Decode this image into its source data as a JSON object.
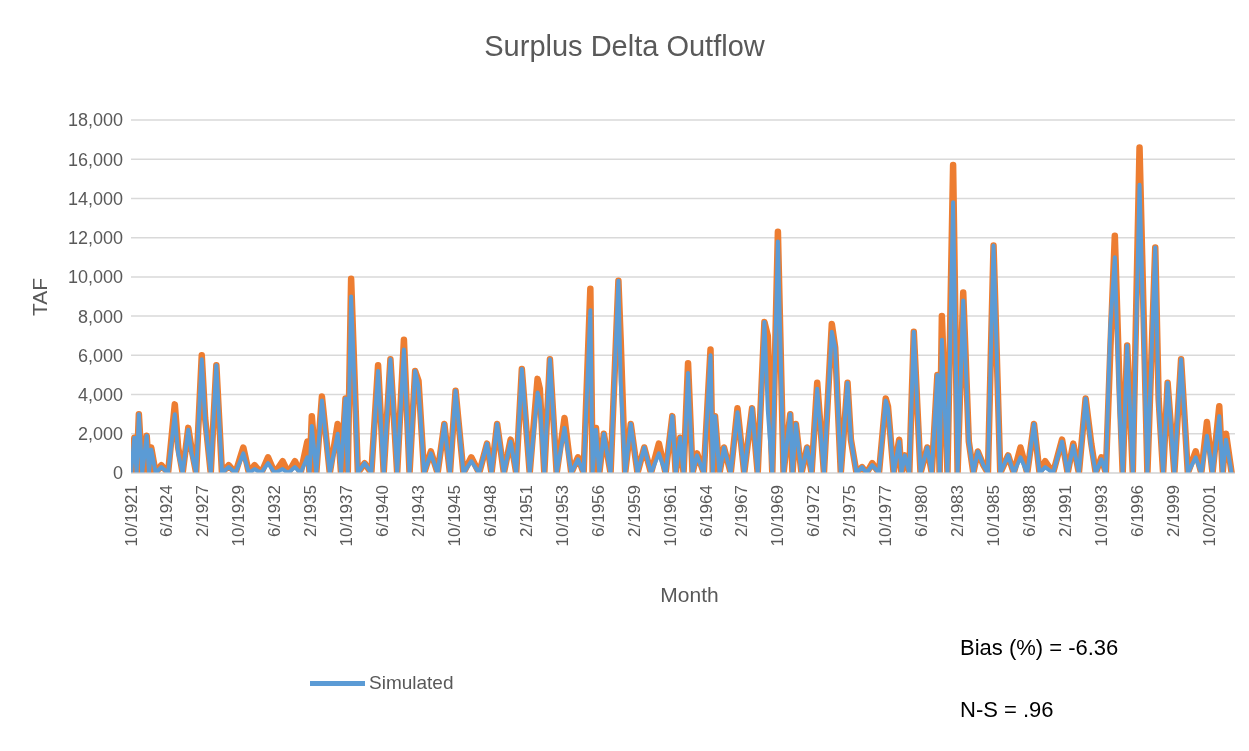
{
  "chart_data": {
    "type": "line",
    "title": "Surplus Delta Outflow",
    "xlabel": "Month",
    "ylabel": "TAF",
    "x": [
      "1921-10",
      "1922-01",
      "1922-03",
      "1922-05",
      "1922-08",
      "1922-12",
      "1923-02",
      "1923-04",
      "1923-08",
      "1924-01",
      "1924-07",
      "1925-01",
      "1925-04",
      "1925-08",
      "1926-01",
      "1926-04",
      "1926-08",
      "1927-01",
      "1927-04",
      "1927-09",
      "1928-02",
      "1928-07",
      "1929-01",
      "1929-07",
      "1930-02",
      "1930-07",
      "1930-12",
      "1931-06",
      "1931-12",
      "1932-06",
      "1933-01",
      "1933-06",
      "1933-12",
      "1934-05",
      "1934-11",
      "1935-01",
      "1935-03",
      "1935-07",
      "1935-12",
      "1936-07",
      "1937-02",
      "1937-05",
      "1937-09",
      "1937-11",
      "1938-02",
      "1938-08",
      "1939-02",
      "1939-08",
      "1940-02",
      "1940-07",
      "1941-01",
      "1941-07",
      "1942-01",
      "1942-06",
      "1942-11",
      "1943-02",
      "1943-07",
      "1944-01",
      "1944-07",
      "1945-01",
      "1945-06",
      "1945-11",
      "1946-06",
      "1947-01",
      "1947-08",
      "1948-03",
      "1948-07",
      "1948-12",
      "1949-06",
      "1949-12",
      "1950-05",
      "1950-10",
      "1951-05",
      "1951-12",
      "1952-02",
      "1952-06",
      "1952-11",
      "1953-05",
      "1953-12",
      "1954-06",
      "1954-12",
      "1955-05",
      "1955-11",
      "1956-01",
      "1956-04",
      "1956-07",
      "1956-11",
      "1957-05",
      "1957-12",
      "1958-02",
      "1958-06",
      "1958-11",
      "1959-05",
      "1959-11",
      "1960-05",
      "1960-12",
      "1961-06",
      "1961-12",
      "1962-03",
      "1962-07",
      "1962-10",
      "1963-02",
      "1963-06",
      "1963-10",
      "1964-04",
      "1964-10",
      "1964-12",
      "1965-02",
      "1965-06",
      "1965-10",
      "1966-04",
      "1966-10",
      "1967-04",
      "1967-11",
      "1968-04",
      "1968-10",
      "1969-01",
      "1969-05",
      "1969-10",
      "1970-03",
      "1970-09",
      "1970-11",
      "1971-02",
      "1971-07",
      "1971-12",
      "1972-04",
      "1972-09",
      "1973-03",
      "1973-10",
      "1974-01",
      "1974-06",
      "1974-12",
      "1975-03",
      "1975-08",
      "1976-01",
      "1976-05",
      "1976-10",
      "1977-04",
      "1977-10",
      "1977-12",
      "1978-05",
      "1978-10",
      "1978-12",
      "1979-03",
      "1979-07",
      "1979-11",
      "1980-05",
      "1980-11",
      "1981-03",
      "1981-08",
      "1981-10",
      "1981-12",
      "1982-05",
      "1982-10",
      "1983-02",
      "1983-07",
      "1983-12",
      "1984-04",
      "1984-08",
      "1985-01",
      "1985-05",
      "1985-10",
      "1986-04",
      "1986-11",
      "1987-04",
      "1987-10",
      "1988-04",
      "1988-10",
      "1989-03",
      "1989-08",
      "1990-03",
      "1990-11",
      "1991-04",
      "1991-09",
      "1992-02",
      "1992-08",
      "1993-01",
      "1993-05",
      "1993-10",
      "1994-02",
      "1994-06",
      "1994-10",
      "1995-02",
      "1995-05",
      "1995-09",
      "1996-02",
      "1996-08",
      "1997-03",
      "1997-10",
      "1998-01",
      "1998-05",
      "1998-09",
      "1999-03",
      "1999-09",
      "2000-03",
      "2000-10",
      "2001-03",
      "2001-08",
      "2002-01",
      "2002-07",
      "2002-10",
      "2003-01",
      "2003-06"
    ],
    "series": [
      {
        "color": "#ed7d31",
        "values": [
          0,
          1800,
          0,
          3000,
          0,
          1900,
          0,
          1300,
          0,
          400,
          0,
          3500,
          1300,
          0,
          2300,
          1200,
          0,
          6000,
          2800,
          0,
          5500,
          0,
          400,
          0,
          1300,
          0,
          400,
          0,
          800,
          0,
          600,
          0,
          600,
          0,
          1600,
          0,
          2900,
          0,
          3900,
          0,
          2500,
          0,
          3800,
          0,
          9900,
          0,
          500,
          0,
          5500,
          0,
          5800,
          0,
          6800,
          0,
          5200,
          4700,
          0,
          1100,
          0,
          2500,
          0,
          4200,
          0,
          800,
          0,
          1500,
          0,
          2500,
          0,
          1700,
          0,
          5300,
          0,
          4800,
          4300,
          0,
          5800,
          0,
          2800,
          0,
          800,
          0,
          9400,
          0,
          2300,
          0,
          2000,
          0,
          9800,
          6800,
          0,
          2500,
          0,
          1300,
          0,
          1500,
          0,
          2900,
          0,
          1800,
          0,
          5600,
          0,
          1000,
          0,
          6300,
          0,
          2900,
          0,
          1300,
          0,
          3300,
          0,
          3300,
          0,
          7700,
          7000,
          0,
          12300,
          0,
          3000,
          0,
          2500,
          0,
          1300,
          0,
          4600,
          0,
          7600,
          6400,
          0,
          4600,
          1700,
          0,
          300,
          0,
          500,
          0,
          3800,
          3400,
          0,
          1700,
          0,
          900,
          0,
          7200,
          0,
          1300,
          0,
          5000,
          0,
          8000,
          0,
          15700,
          0,
          9200,
          1600,
          0,
          1100,
          400,
          0,
          11600,
          0,
          900,
          0,
          1300,
          0,
          2500,
          0,
          600,
          0,
          1700,
          0,
          1500,
          0,
          3800,
          1500,
          0,
          800,
          0,
          6300,
          12100,
          4700,
          0,
          6500,
          0,
          16600,
          0,
          11500,
          3800,
          0,
          4600,
          0,
          5800,
          0,
          1100,
          0,
          2600,
          0,
          3400,
          0,
          2000,
          0
        ]
      },
      {
        "name": "Simulated",
        "color": "#5b9bd5",
        "values": [
          0,
          1800,
          0,
          3000,
          0,
          1900,
          0,
          1200,
          0,
          300,
          0,
          3000,
          1000,
          0,
          2200,
          1000,
          0,
          5800,
          2700,
          0,
          5500,
          0,
          300,
          0,
          1000,
          0,
          200,
          0,
          500,
          0,
          200,
          0,
          300,
          0,
          800,
          0,
          2400,
          0,
          3700,
          0,
          2000,
          0,
          3800,
          0,
          9000,
          0,
          500,
          0,
          5200,
          0,
          5800,
          0,
          6300,
          0,
          5200,
          4400,
          0,
          1000,
          0,
          2500,
          0,
          4200,
          0,
          600,
          0,
          1500,
          0,
          2500,
          0,
          1600,
          0,
          5300,
          0,
          4100,
          3700,
          0,
          5800,
          0,
          2300,
          0,
          700,
          0,
          8300,
          0,
          2200,
          0,
          2000,
          0,
          9800,
          4700,
          0,
          2500,
          0,
          1300,
          0,
          1000,
          0,
          2900,
          0,
          1800,
          0,
          5100,
          0,
          900,
          0,
          6000,
          0,
          2900,
          0,
          1300,
          0,
          3100,
          0,
          3300,
          0,
          7700,
          3200,
          0,
          11800,
          0,
          3000,
          0,
          2500,
          0,
          1300,
          0,
          4300,
          0,
          7200,
          6400,
          0,
          4600,
          1700,
          0,
          300,
          0,
          400,
          0,
          3700,
          3300,
          0,
          1600,
          0,
          900,
          0,
          7200,
          0,
          1300,
          0,
          5000,
          0,
          6800,
          0,
          13800,
          0,
          8800,
          1600,
          0,
          1100,
          400,
          0,
          11600,
          0,
          900,
          0,
          800,
          0,
          2500,
          0,
          300,
          0,
          1600,
          0,
          1400,
          0,
          3800,
          1300,
          0,
          700,
          0,
          7500,
          11000,
          3400,
          0,
          6500,
          0,
          14700,
          0,
          11500,
          3500,
          0,
          4600,
          0,
          5800,
          0,
          800,
          0,
          1900,
          0,
          2900,
          0,
          1700,
          0
        ]
      }
    ],
    "xlim": [
      "1921-10",
      "2003-09"
    ],
    "xticks": [
      {
        "value": "1921-10",
        "label": "10/1921"
      },
      {
        "value": "1924-06",
        "label": "6/1924"
      },
      {
        "value": "1927-02",
        "label": "2/1927"
      },
      {
        "value": "1929-10",
        "label": "10/1929"
      },
      {
        "value": "1932-06",
        "label": "6/1932"
      },
      {
        "value": "1935-02",
        "label": "2/1935"
      },
      {
        "value": "1937-10",
        "label": "10/1937"
      },
      {
        "value": "1940-06",
        "label": "6/1940"
      },
      {
        "value": "1943-02",
        "label": "2/1943"
      },
      {
        "value": "1945-10",
        "label": "10/1945"
      },
      {
        "value": "1948-06",
        "label": "6/1948"
      },
      {
        "value": "1951-02",
        "label": "2/1951"
      },
      {
        "value": "1953-10",
        "label": "10/1953"
      },
      {
        "value": "1956-06",
        "label": "6/1956"
      },
      {
        "value": "1959-02",
        "label": "2/1959"
      },
      {
        "value": "1961-10",
        "label": "10/1961"
      },
      {
        "value": "1964-06",
        "label": "6/1964"
      },
      {
        "value": "1967-02",
        "label": "2/1967"
      },
      {
        "value": "1969-10",
        "label": "10/1969"
      },
      {
        "value": "1972-06",
        "label": "6/1972"
      },
      {
        "value": "1975-02",
        "label": "2/1975"
      },
      {
        "value": "1977-10",
        "label": "10/1977"
      },
      {
        "value": "1980-06",
        "label": "6/1980"
      },
      {
        "value": "1983-02",
        "label": "2/1983"
      },
      {
        "value": "1985-10",
        "label": "10/1985"
      },
      {
        "value": "1988-06",
        "label": "6/1988"
      },
      {
        "value": "1991-02",
        "label": "2/1991"
      },
      {
        "value": "1993-10",
        "label": "10/1993"
      },
      {
        "value": "1996-06",
        "label": "6/1996"
      },
      {
        "value": "1999-02",
        "label": "2/1999"
      },
      {
        "value": "2001-10",
        "label": "10/2001"
      }
    ],
    "ylim": [
      0,
      18000
    ],
    "yticks": [
      0,
      {
        "value": 2000,
        "label": "2,000"
      },
      {
        "value": 4000,
        "label": "4,000"
      },
      {
        "value": 6000,
        "label": "6,000"
      },
      {
        "value": 8000,
        "label": "8,000"
      },
      {
        "value": 10000,
        "label": "10,000"
      },
      {
        "value": 12000,
        "label": "12,000"
      },
      {
        "value": 14000,
        "label": "14,000"
      },
      {
        "value": 16000,
        "label": "16,000"
      },
      {
        "value": 18000,
        "label": "18,000"
      }
    ],
    "grid": "y",
    "legend": "bottom left",
    "marker": "none",
    "line_style": "solid",
    "annotations": [
      "Bias (%) = -6.36",
      "N-S = .96"
    ]
  }
}
